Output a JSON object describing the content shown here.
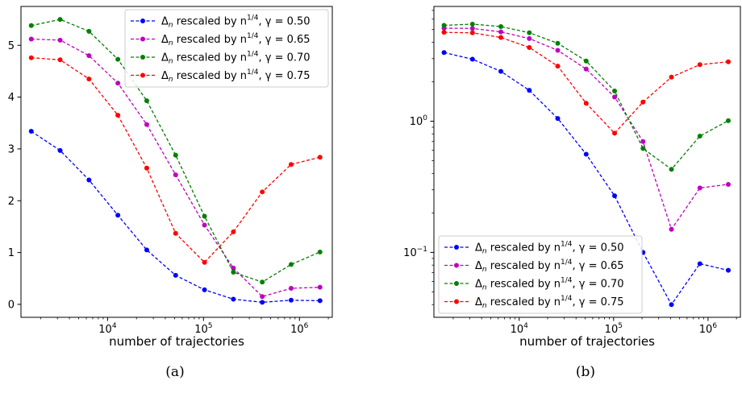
{
  "chart_data": [
    {
      "type": "line",
      "caption": "(a)",
      "xlabel": "number of trajectories",
      "xscale": "log",
      "yscale": "linear",
      "xlim": [
        1250,
        2200000
      ],
      "ylim": [
        -0.25,
        5.75
      ],
      "xticks": [
        {
          "value": 10000,
          "label": "10",
          "exp": "4"
        },
        {
          "value": 100000,
          "label": "10",
          "exp": "5"
        },
        {
          "value": 1000000,
          "label": "10",
          "exp": "6"
        }
      ],
      "yticks": [
        {
          "value": 0,
          "label": "0"
        },
        {
          "value": 1,
          "label": "1"
        },
        {
          "value": 2,
          "label": "2"
        },
        {
          "value": 3,
          "label": "3"
        },
        {
          "value": 4,
          "label": "4"
        },
        {
          "value": 5,
          "label": "5"
        }
      ],
      "legend_position": "top-right",
      "x": [
        1600,
        3200,
        6400,
        12800,
        25600,
        51200,
        102400,
        204800,
        409600,
        819200,
        1638400
      ],
      "series": [
        {
          "name_pre": "Δ",
          "name_sub": "n",
          "name_mid": " rescaled by n",
          "name_sup": "1/4",
          "name_post": ", γ = 0.50",
          "color": "#0000ff",
          "values": [
            3.34,
            2.97,
            2.4,
            1.72,
            1.05,
            0.56,
            0.28,
            0.1,
            0.04,
            0.08,
            0.07
          ]
        },
        {
          "name_pre": "Δ",
          "name_sub": "n",
          "name_mid": " rescaled by n",
          "name_sup": "1/4",
          "name_post": ", γ = 0.65",
          "color": "#bf00bf",
          "values": [
            5.12,
            5.1,
            4.8,
            4.27,
            3.47,
            2.5,
            1.53,
            0.7,
            0.15,
            0.31,
            0.33
          ]
        },
        {
          "name_pre": "Δ",
          "name_sub": "n",
          "name_mid": " rescaled by n",
          "name_sup": "1/4",
          "name_post": ", γ = 0.70",
          "color": "#008000",
          "values": [
            5.38,
            5.5,
            5.27,
            4.73,
            3.93,
            2.88,
            1.7,
            0.62,
            0.43,
            0.77,
            1.01
          ]
        },
        {
          "name_pre": "Δ",
          "name_sub": "n",
          "name_mid": " rescaled by n",
          "name_sup": "1/4",
          "name_post": ", γ = 0.75",
          "color": "#ff0000",
          "values": [
            4.76,
            4.72,
            4.35,
            3.65,
            2.63,
            1.37,
            0.81,
            1.4,
            2.17,
            2.7,
            2.84
          ]
        }
      ]
    },
    {
      "type": "line",
      "caption": "(b)",
      "xlabel": "number of trajectories",
      "xscale": "log",
      "yscale": "log",
      "xlim": [
        1250,
        2200000
      ],
      "ylim": [
        0.032,
        7.5
      ],
      "xticks": [
        {
          "value": 10000,
          "label": "10",
          "exp": "4"
        },
        {
          "value": 100000,
          "label": "10",
          "exp": "5"
        },
        {
          "value": 1000000,
          "label": "10",
          "exp": "6"
        }
      ],
      "yticks": [
        {
          "value": 0.1,
          "label": "10",
          "exp": "−1"
        },
        {
          "value": 1,
          "label": "10",
          "exp": "0"
        }
      ],
      "legend_position": "bottom-left",
      "x": [
        1600,
        3200,
        6400,
        12800,
        25600,
        51200,
        102400,
        204800,
        409600,
        819200,
        1638400
      ],
      "series": [
        {
          "name_pre": "Δ",
          "name_sub": "n",
          "name_mid": " rescaled by n",
          "name_sup": "1/4",
          "name_post": ", γ = 0.50",
          "color": "#0000ff",
          "values": [
            3.34,
            2.97,
            2.4,
            1.72,
            1.05,
            0.56,
            0.27,
            0.1,
            0.04,
            0.082,
            0.073
          ]
        },
        {
          "name_pre": "Δ",
          "name_sub": "n",
          "name_mid": " rescaled by n",
          "name_sup": "1/4",
          "name_post": ", γ = 0.65",
          "color": "#bf00bf",
          "values": [
            5.12,
            5.1,
            4.8,
            4.27,
            3.47,
            2.5,
            1.53,
            0.7,
            0.15,
            0.31,
            0.33
          ]
        },
        {
          "name_pre": "Δ",
          "name_sub": "n",
          "name_mid": " rescaled by n",
          "name_sup": "1/4",
          "name_post": ", γ = 0.70",
          "color": "#008000",
          "values": [
            5.38,
            5.5,
            5.27,
            4.73,
            3.93,
            2.88,
            1.7,
            0.62,
            0.43,
            0.77,
            1.01
          ]
        },
        {
          "name_pre": "Δ",
          "name_sub": "n",
          "name_mid": " rescaled by n",
          "name_sup": "1/4",
          "name_post": ", γ = 0.75",
          "color": "#ff0000",
          "values": [
            4.76,
            4.72,
            4.35,
            3.65,
            2.63,
            1.37,
            0.81,
            1.4,
            2.17,
            2.7,
            2.84
          ]
        }
      ]
    }
  ]
}
